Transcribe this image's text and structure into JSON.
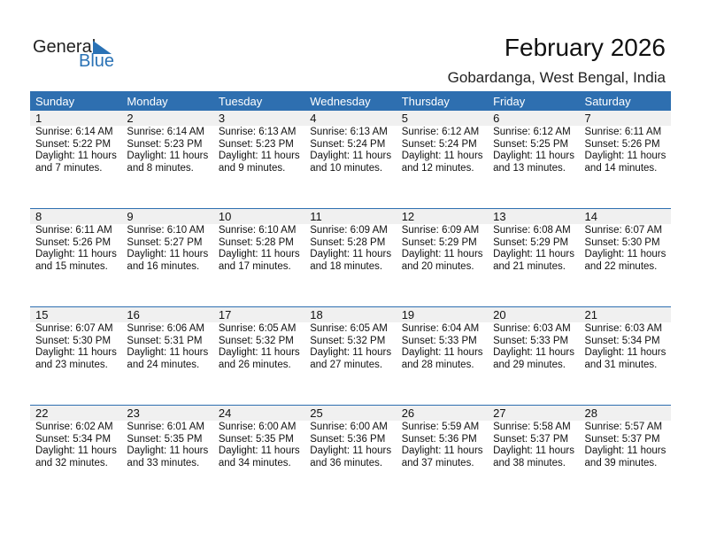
{
  "logo": {
    "general": "General",
    "blue": "Blue"
  },
  "title": "February 2026",
  "location": "Gobardanga, West Bengal, India",
  "weekdays": [
    "Sunday",
    "Monday",
    "Tuesday",
    "Wednesday",
    "Thursday",
    "Friday",
    "Saturday"
  ],
  "weeks": [
    [
      {
        "d": "1",
        "sr": "Sunrise: 6:14 AM",
        "ss": "Sunset: 5:22 PM",
        "dl": "Daylight: 11 hours",
        "dm": "and 7 minutes."
      },
      {
        "d": "2",
        "sr": "Sunrise: 6:14 AM",
        "ss": "Sunset: 5:23 PM",
        "dl": "Daylight: 11 hours",
        "dm": "and 8 minutes."
      },
      {
        "d": "3",
        "sr": "Sunrise: 6:13 AM",
        "ss": "Sunset: 5:23 PM",
        "dl": "Daylight: 11 hours",
        "dm": "and 9 minutes."
      },
      {
        "d": "4",
        "sr": "Sunrise: 6:13 AM",
        "ss": "Sunset: 5:24 PM",
        "dl": "Daylight: 11 hours",
        "dm": "and 10 minutes."
      },
      {
        "d": "5",
        "sr": "Sunrise: 6:12 AM",
        "ss": "Sunset: 5:24 PM",
        "dl": "Daylight: 11 hours",
        "dm": "and 12 minutes."
      },
      {
        "d": "6",
        "sr": "Sunrise: 6:12 AM",
        "ss": "Sunset: 5:25 PM",
        "dl": "Daylight: 11 hours",
        "dm": "and 13 minutes."
      },
      {
        "d": "7",
        "sr": "Sunrise: 6:11 AM",
        "ss": "Sunset: 5:26 PM",
        "dl": "Daylight: 11 hours",
        "dm": "and 14 minutes."
      }
    ],
    [
      {
        "d": "8",
        "sr": "Sunrise: 6:11 AM",
        "ss": "Sunset: 5:26 PM",
        "dl": "Daylight: 11 hours",
        "dm": "and 15 minutes."
      },
      {
        "d": "9",
        "sr": "Sunrise: 6:10 AM",
        "ss": "Sunset: 5:27 PM",
        "dl": "Daylight: 11 hours",
        "dm": "and 16 minutes."
      },
      {
        "d": "10",
        "sr": "Sunrise: 6:10 AM",
        "ss": "Sunset: 5:28 PM",
        "dl": "Daylight: 11 hours",
        "dm": "and 17 minutes."
      },
      {
        "d": "11",
        "sr": "Sunrise: 6:09 AM",
        "ss": "Sunset: 5:28 PM",
        "dl": "Daylight: 11 hours",
        "dm": "and 18 minutes."
      },
      {
        "d": "12",
        "sr": "Sunrise: 6:09 AM",
        "ss": "Sunset: 5:29 PM",
        "dl": "Daylight: 11 hours",
        "dm": "and 20 minutes."
      },
      {
        "d": "13",
        "sr": "Sunrise: 6:08 AM",
        "ss": "Sunset: 5:29 PM",
        "dl": "Daylight: 11 hours",
        "dm": "and 21 minutes."
      },
      {
        "d": "14",
        "sr": "Sunrise: 6:07 AM",
        "ss": "Sunset: 5:30 PM",
        "dl": "Daylight: 11 hours",
        "dm": "and 22 minutes."
      }
    ],
    [
      {
        "d": "15",
        "sr": "Sunrise: 6:07 AM",
        "ss": "Sunset: 5:30 PM",
        "dl": "Daylight: 11 hours",
        "dm": "and 23 minutes."
      },
      {
        "d": "16",
        "sr": "Sunrise: 6:06 AM",
        "ss": "Sunset: 5:31 PM",
        "dl": "Daylight: 11 hours",
        "dm": "and 24 minutes."
      },
      {
        "d": "17",
        "sr": "Sunrise: 6:05 AM",
        "ss": "Sunset: 5:32 PM",
        "dl": "Daylight: 11 hours",
        "dm": "and 26 minutes."
      },
      {
        "d": "18",
        "sr": "Sunrise: 6:05 AM",
        "ss": "Sunset: 5:32 PM",
        "dl": "Daylight: 11 hours",
        "dm": "and 27 minutes."
      },
      {
        "d": "19",
        "sr": "Sunrise: 6:04 AM",
        "ss": "Sunset: 5:33 PM",
        "dl": "Daylight: 11 hours",
        "dm": "and 28 minutes."
      },
      {
        "d": "20",
        "sr": "Sunrise: 6:03 AM",
        "ss": "Sunset: 5:33 PM",
        "dl": "Daylight: 11 hours",
        "dm": "and 29 minutes."
      },
      {
        "d": "21",
        "sr": "Sunrise: 6:03 AM",
        "ss": "Sunset: 5:34 PM",
        "dl": "Daylight: 11 hours",
        "dm": "and 31 minutes."
      }
    ],
    [
      {
        "d": "22",
        "sr": "Sunrise: 6:02 AM",
        "ss": "Sunset: 5:34 PM",
        "dl": "Daylight: 11 hours",
        "dm": "and 32 minutes."
      },
      {
        "d": "23",
        "sr": "Sunrise: 6:01 AM",
        "ss": "Sunset: 5:35 PM",
        "dl": "Daylight: 11 hours",
        "dm": "and 33 minutes."
      },
      {
        "d": "24",
        "sr": "Sunrise: 6:00 AM",
        "ss": "Sunset: 5:35 PM",
        "dl": "Daylight: 11 hours",
        "dm": "and 34 minutes."
      },
      {
        "d": "25",
        "sr": "Sunrise: 6:00 AM",
        "ss": "Sunset: 5:36 PM",
        "dl": "Daylight: 11 hours",
        "dm": "and 36 minutes."
      },
      {
        "d": "26",
        "sr": "Sunrise: 5:59 AM",
        "ss": "Sunset: 5:36 PM",
        "dl": "Daylight: 11 hours",
        "dm": "and 37 minutes."
      },
      {
        "d": "27",
        "sr": "Sunrise: 5:58 AM",
        "ss": "Sunset: 5:37 PM",
        "dl": "Daylight: 11 hours",
        "dm": "and 38 minutes."
      },
      {
        "d": "28",
        "sr": "Sunrise: 5:57 AM",
        "ss": "Sunset: 5:37 PM",
        "dl": "Daylight: 11 hours",
        "dm": "and 39 minutes."
      }
    ]
  ],
  "colors": {
    "header": "#2e6fb0",
    "day_bg": "#f0f0f0",
    "logo_blue": "#2a72b5"
  }
}
